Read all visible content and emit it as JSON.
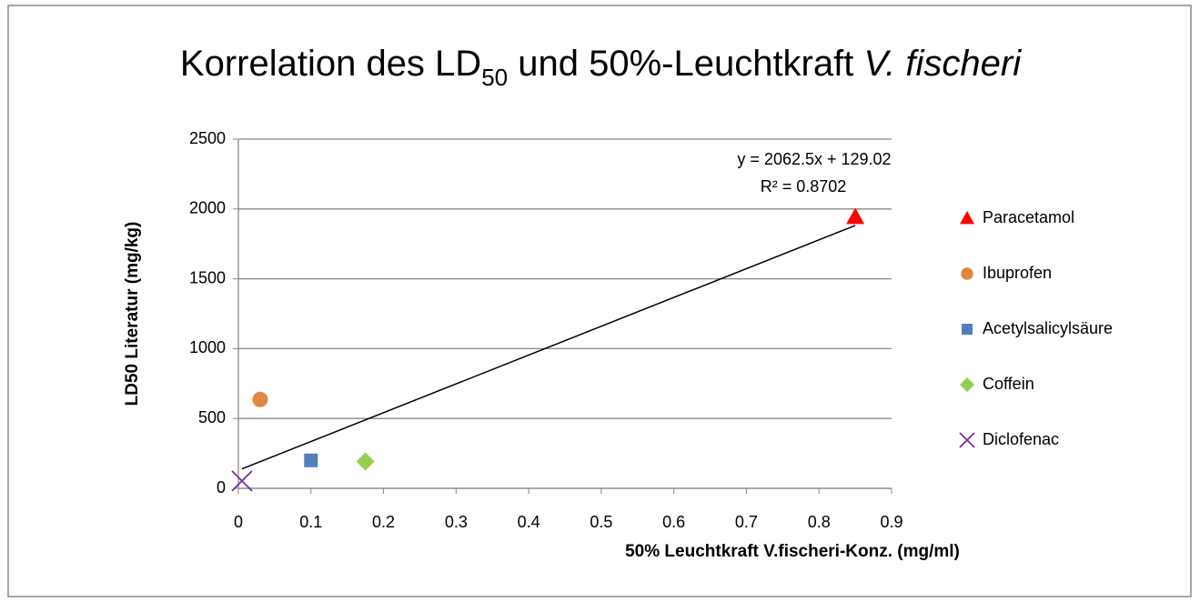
{
  "chart_data": {
    "type": "scatter",
    "title": [
      "Korrelation des LD",
      "50",
      " und 50%-Leuchtkraft ",
      "V. fischeri"
    ],
    "x_label": "50% Leuchtkraft V.fischeri-Konz. (mg/ml)",
    "y_label": "LD50 Literatur (mg/kg)",
    "xlim": [
      0,
      0.9
    ],
    "xticks": [
      0,
      0.1,
      0.2,
      0.3,
      0.4,
      0.5,
      0.6,
      0.7,
      0.8,
      0.9
    ],
    "ylim": [
      0,
      2500
    ],
    "yticks": [
      0,
      500,
      1000,
      1500,
      2000,
      2500
    ],
    "grid": true,
    "legend": "right",
    "series": [
      {
        "name": "Paracetamol",
        "color": "#ff0000",
        "marker": "triangle",
        "x": [
          0.85
        ],
        "values": [
          1944
        ]
      },
      {
        "name": "Ibuprofen",
        "color": "#e0883f",
        "marker": "circle",
        "x": [
          0.03
        ],
        "values": [
          636
        ]
      },
      {
        "name": "Acetylsalicylsäure",
        "color": "#4f81bd",
        "marker": "square",
        "x": [
          0.1
        ],
        "values": [
          200
        ]
      },
      {
        "name": "Coffein",
        "color": "#92d050",
        "marker": "diamond",
        "x": [
          0.175
        ],
        "values": [
          192
        ]
      },
      {
        "name": "Diclofenac",
        "color": "#7030a0",
        "marker": "x",
        "x": [
          0.005
        ],
        "values": [
          53
        ]
      }
    ],
    "trendline": {
      "slope": 2062.5,
      "intercept": 129.02,
      "equation": "y = 2062.5x + 129.02",
      "r2_label": "R² = 0.8702"
    }
  }
}
